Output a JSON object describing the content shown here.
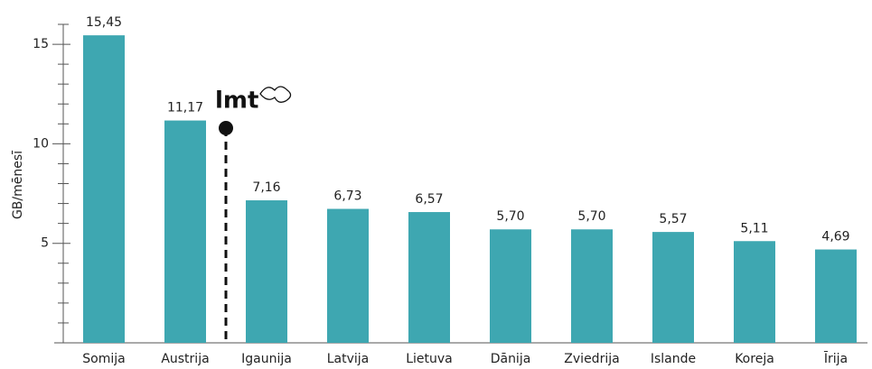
{
  "chart_data": {
    "type": "bar",
    "y_label": "GB/mēnesī",
    "annotation": "lmt",
    "categories": [
      "Somija",
      "Austrija",
      "Igaunija",
      "Latvija",
      "Lietuva",
      "Dānija",
      "Zviedrija",
      "Islande",
      "Koreja",
      "Īrija"
    ],
    "values": [
      15.45,
      11.17,
      7.16,
      6.73,
      6.57,
      5.7,
      5.7,
      5.57,
      5.11,
      4.69
    ],
    "value_labels": [
      "15,45",
      "11,17",
      "7,16",
      "6,73",
      "6,57",
      "5,70",
      "5,70",
      "5,57",
      "5,11",
      "4,69"
    ],
    "color": "#3ea7b1",
    "ylim": [
      0,
      16
    ],
    "yticks": [
      5,
      10,
      15
    ],
    "minor_yticks": [
      1,
      2,
      3,
      4,
      6,
      7,
      8,
      9,
      11,
      12,
      13,
      14,
      16
    ]
  }
}
